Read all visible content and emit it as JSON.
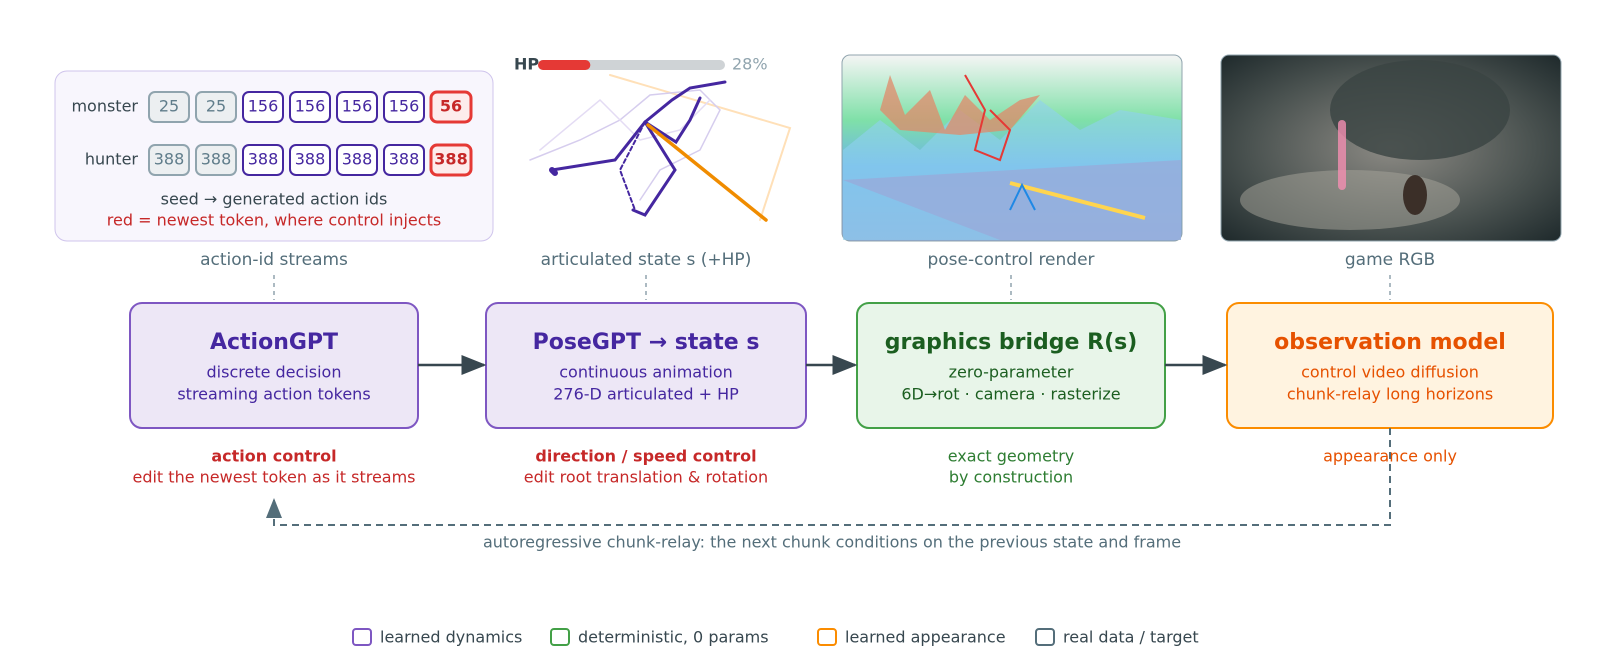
{
  "tokens": {
    "rows": [
      {
        "label": "monster",
        "ids": [
          25,
          25,
          156,
          156,
          156,
          156,
          56
        ]
      },
      {
        "label": "hunter",
        "ids": [
          388,
          388,
          388,
          388,
          388,
          388,
          388
        ]
      }
    ],
    "caption": "seed → generated action ids",
    "note": "red = newest token, where control injects"
  },
  "hp": {
    "label": "HP",
    "value": 28,
    "value_label": "28%"
  },
  "captions": [
    "action-id streams",
    "articulated state s (+HP)",
    "pose-control render",
    "game RGB"
  ],
  "nodes": [
    {
      "title": "ActionGPT",
      "lines": [
        "discrete decision",
        "streaming action tokens"
      ]
    },
    {
      "title": "PoseGPT → state s",
      "lines": [
        "continuous animation",
        "276-D articulated + HP"
      ]
    },
    {
      "title": "graphics bridge R(s)",
      "lines": [
        "zero-parameter",
        "6D→rot · camera · rasterize"
      ]
    },
    {
      "title": "observation model",
      "lines": [
        "control video diffusion",
        "chunk-relay long horizons"
      ]
    }
  ],
  "notes": [
    {
      "lines": [
        "action control",
        "edit the newest token as it streams"
      ]
    },
    {
      "lines": [
        "direction / speed control",
        "edit root translation & rotation"
      ]
    },
    {
      "lines": [
        "exact geometry",
        "by construction"
      ]
    },
    {
      "lines": [
        "appearance only"
      ]
    }
  ],
  "feedback": "autoregressive chunk-relay: the next chunk conditions on the previous state and frame",
  "legend": [
    "learned dynamics",
    "deterministic, 0 params",
    "learned appearance",
    "real data / target"
  ]
}
